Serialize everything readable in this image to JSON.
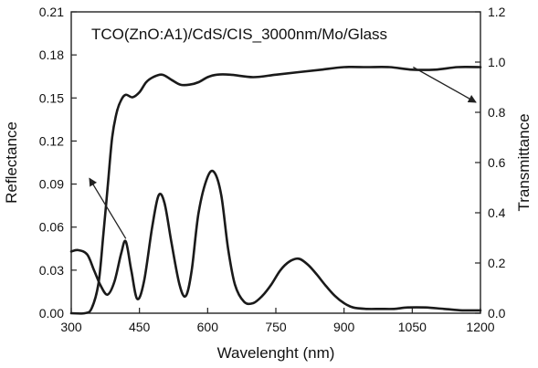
{
  "chart_data": {
    "type": "line",
    "title": "TCO(ZnO:A1)/CdS/CIS_3000nm/Mo/Glass",
    "xlabel": "Wavelenght (nm)",
    "ylabel_left": "Reflectance",
    "ylabel_right": "Transmittance",
    "xlim": [
      300,
      1200
    ],
    "ylim_left": [
      0,
      0.21
    ],
    "ylim_right": [
      0,
      1.2
    ],
    "x_ticks": [
      "300",
      "450",
      "600",
      "750",
      "900",
      "1050",
      "1200"
    ],
    "y_left_ticks": [
      "0.00",
      "0.03",
      "0.06",
      "0.09",
      "0.12",
      "0.15",
      "0.18",
      "0.21"
    ],
    "y_right_ticks": [
      "0.0",
      "0.2",
      "0.4",
      "0.6",
      "0.8",
      "1.0",
      "1.2"
    ],
    "grid": false,
    "series": [
      {
        "axis": "left",
        "x": [
          300,
          315,
          335,
          350,
          365,
          380,
          395,
          410,
          420,
          432,
          445,
          460,
          478,
          492,
          505,
          520,
          538,
          552,
          565,
          580,
          600,
          615,
          630,
          645,
          660,
          680,
          700,
          720,
          740,
          760,
          780,
          800,
          820,
          840,
          860,
          880,
          900,
          920,
          950,
          980,
          1010,
          1040,
          1080,
          1120,
          1160,
          1200
        ],
        "y": [
          0.043,
          0.044,
          0.041,
          0.03,
          0.019,
          0.013,
          0.022,
          0.042,
          0.05,
          0.03,
          0.01,
          0.022,
          0.06,
          0.082,
          0.077,
          0.05,
          0.02,
          0.012,
          0.03,
          0.07,
          0.095,
          0.098,
          0.082,
          0.045,
          0.02,
          0.008,
          0.007,
          0.012,
          0.02,
          0.03,
          0.036,
          0.038,
          0.034,
          0.027,
          0.019,
          0.012,
          0.007,
          0.004,
          0.003,
          0.003,
          0.003,
          0.004,
          0.004,
          0.003,
          0.002,
          0.002
        ]
      },
      {
        "axis": "right",
        "x": [
          300,
          330,
          345,
          360,
          370,
          380,
          390,
          400,
          410,
          420,
          435,
          450,
          465,
          480,
          500,
          520,
          540,
          560,
          580,
          600,
          620,
          650,
          700,
          750,
          800,
          850,
          900,
          950,
          1000,
          1050,
          1100,
          1150,
          1200
        ],
        "y": [
          0.0,
          0.0,
          0.02,
          0.12,
          0.3,
          0.5,
          0.7,
          0.8,
          0.85,
          0.87,
          0.86,
          0.88,
          0.92,
          0.94,
          0.95,
          0.93,
          0.91,
          0.91,
          0.92,
          0.94,
          0.95,
          0.95,
          0.94,
          0.95,
          0.96,
          0.97,
          0.98,
          0.98,
          0.98,
          0.97,
          0.97,
          0.98,
          0.98
        ]
      }
    ],
    "annotations": [
      {
        "type": "arrow",
        "points_to": "left-axis",
        "from": [
          420,
          0.052
        ],
        "to": [
          340,
          0.094
        ]
      },
      {
        "type": "arrow",
        "points_to": "right-axis",
        "from": [
          1052,
          0.98
        ],
        "to": [
          1190,
          0.84
        ]
      }
    ]
  }
}
